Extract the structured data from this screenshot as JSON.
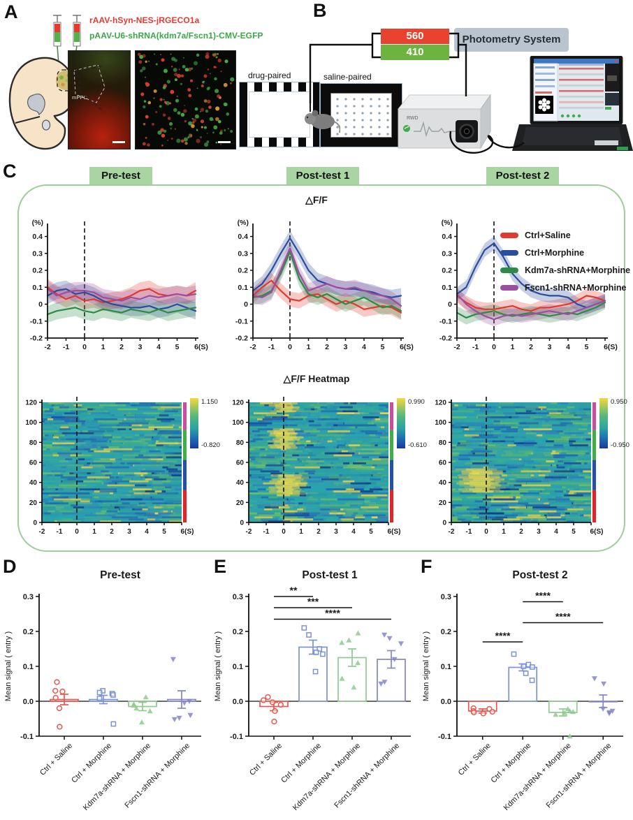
{
  "figure": {
    "panels": {
      "a": "A",
      "b": "B",
      "c": "C",
      "d": "D",
      "e": "E",
      "f": "F"
    },
    "panel_a": {
      "construct_red": "rAAV-hSyn-NES-jRGECO1a",
      "construct_green": "pAAV-U6-shRNA(kdm7a/Fscn1)-CMV-EGFP",
      "construct_red_color": "#e8392f",
      "construct_green_color": "#3aa648",
      "region_label": "mPFC",
      "micrograph_dot_colors": [
        "#e0402e",
        "#46b14a",
        "#e0962e"
      ]
    },
    "panel_b": {
      "chamber_left_label": "drug-paired",
      "chamber_right_label": "saline-paired",
      "wavelength_top": "560",
      "wavelength_bottom": "410",
      "wavelength_top_color": "#e8432e",
      "wavelength_bottom_color": "#6cb33f",
      "system_label": "Photometry System",
      "device_brand": "RWD"
    },
    "panel_c": {
      "headers": [
        "Pre-test",
        "Post-test 1",
        "Post-test 2"
      ],
      "trace_title": "△F/F",
      "heatmap_title": "△F/F Heatmap",
      "accent_green": "#a8d5a2",
      "legend": [
        {
          "label": "Ctrl+Saline",
          "color": "#e03a30"
        },
        {
          "label": "Ctrl+Morphine",
          "color": "#2b4d9b"
        },
        {
          "label": "Kdm7a-shRNA+Morphine",
          "color": "#2e8b47"
        },
        {
          "label": "Fscn1-shRNA+Morphine",
          "color": "#9c4f9e"
        }
      ]
    }
  },
  "chart_data": [
    {
      "id": "trace-pretest",
      "type": "line",
      "title": "Pre-test",
      "ylabel": "(%)",
      "x_range": [
        -2,
        6
      ],
      "y_range": [
        -0.2,
        0.46
      ],
      "x_ticks": [
        -2,
        -1,
        0,
        1,
        2,
        3,
        4,
        5,
        6
      ],
      "y_ticks": [
        0.4,
        0.3,
        0.2,
        0.1,
        0,
        -0.1,
        -0.2
      ],
      "event_line_x": 0,
      "x_step": 0.5,
      "band": 0.05,
      "series": [
        {
          "name": "Ctrl+Saline",
          "color": "#e03a30",
          "values": [
            0.1,
            0.06,
            0.03,
            0.05,
            0.02,
            0.03,
            0.01,
            0.02,
            0.03,
            0.05,
            0.08,
            0.09,
            0.06,
            0.05,
            0.06,
            0.05,
            0.08
          ]
        },
        {
          "name": "Ctrl+Morphine",
          "color": "#2b4d9b",
          "values": [
            0.05,
            0.08,
            0.09,
            0.06,
            0.07,
            0.05,
            0.02,
            0.0,
            -0.01,
            -0.02,
            -0.02,
            -0.01,
            -0.03,
            -0.02,
            0.0,
            -0.02,
            -0.04
          ]
        },
        {
          "name": "Kdm7a-shRNA+Morphine",
          "color": "#2e8b47",
          "values": [
            -0.06,
            -0.04,
            -0.03,
            -0.02,
            -0.04,
            -0.05,
            -0.03,
            -0.04,
            -0.05,
            -0.03,
            -0.04,
            -0.05,
            -0.03,
            -0.05,
            -0.04,
            -0.03,
            -0.02
          ]
        },
        {
          "name": "Fscn1-shRNA+Morphine",
          "color": "#9c4f9e",
          "values": [
            0.09,
            0.05,
            0.07,
            0.08,
            0.08,
            0.07,
            0.04,
            0.03,
            0.02,
            0.04,
            0.03,
            0.05,
            0.04,
            0.05,
            0.06,
            0.05,
            0.06
          ]
        }
      ]
    },
    {
      "id": "trace-posttest1",
      "type": "line",
      "title": "Post-test 1",
      "ylabel": "(%)",
      "x_range": [
        -2,
        6
      ],
      "y_range": [
        -0.2,
        0.46
      ],
      "x_ticks": [
        -2,
        -1,
        0,
        1,
        2,
        3,
        4,
        5,
        6
      ],
      "y_ticks": [
        0.4,
        0.3,
        0.2,
        0.1,
        0,
        -0.1,
        -0.2
      ],
      "event_line_x": 0,
      "x_step": 0.5,
      "band": 0.045,
      "series": [
        {
          "name": "Ctrl+Saline",
          "color": "#e03a30",
          "values": [
            0.05,
            0.1,
            0.14,
            0.08,
            0.03,
            0.02,
            0.05,
            0.06,
            0.03,
            0.0,
            0.02,
            0.0,
            -0.03,
            -0.02,
            -0.01,
            -0.02,
            -0.05
          ]
        },
        {
          "name": "Ctrl+Morphine",
          "color": "#2b4d9b",
          "values": [
            0.08,
            0.12,
            0.2,
            0.3,
            0.39,
            0.3,
            0.2,
            0.14,
            0.12,
            0.1,
            0.09,
            0.09,
            0.08,
            0.07,
            0.05,
            0.04,
            0.05
          ]
        },
        {
          "name": "Kdm7a-shRNA+Morphine",
          "color": "#2e8b47",
          "values": [
            0.04,
            0.05,
            0.08,
            0.18,
            0.31,
            0.15,
            0.06,
            0.04,
            0.06,
            0.03,
            0.0,
            0.02,
            0.04,
            0.01,
            -0.02,
            -0.01,
            -0.04
          ]
        },
        {
          "name": "Fscn1-shRNA+Morphine",
          "color": "#9c4f9e",
          "values": [
            0.05,
            0.04,
            0.07,
            0.2,
            0.33,
            0.18,
            0.08,
            0.1,
            0.12,
            0.1,
            0.09,
            0.1,
            0.08,
            0.06,
            0.05,
            0.03,
            -0.01
          ]
        }
      ]
    },
    {
      "id": "trace-posttest2",
      "type": "line",
      "title": "Post-test 2",
      "ylabel": "(%)",
      "x_range": [
        -2,
        6
      ],
      "y_range": [
        -0.2,
        0.46
      ],
      "x_ticks": [
        -2,
        -1,
        0,
        1,
        2,
        3,
        4,
        5,
        6
      ],
      "y_ticks": [
        0.4,
        0.3,
        0.2,
        0.1,
        0,
        -0.1,
        -0.2
      ],
      "event_line_x": 0,
      "x_step": 0.5,
      "band": 0.04,
      "series": [
        {
          "name": "Ctrl+Saline",
          "color": "#e03a30",
          "values": [
            0.05,
            0.01,
            -0.02,
            -0.03,
            -0.03,
            -0.02,
            -0.01,
            -0.03,
            -0.04,
            -0.02,
            -0.02,
            -0.01,
            0.0,
            0.02,
            0.05,
            0.04,
            0.02
          ]
        },
        {
          "name": "Ctrl+Morphine",
          "color": "#2b4d9b",
          "values": [
            0.06,
            0.1,
            0.22,
            0.32,
            0.36,
            0.28,
            0.18,
            0.12,
            0.08,
            0.06,
            0.05,
            0.05,
            0.04,
            0.0,
            -0.02,
            0.0,
            0.02
          ]
        },
        {
          "name": "Kdm7a-shRNA+Morphine",
          "color": "#2e8b47",
          "values": [
            -0.05,
            -0.08,
            -0.06,
            -0.05,
            -0.04,
            -0.06,
            -0.07,
            -0.06,
            -0.05,
            -0.06,
            -0.07,
            -0.06,
            -0.05,
            -0.06,
            -0.04,
            -0.02,
            0.01
          ]
        },
        {
          "name": "Fscn1-shRNA+Morphine",
          "color": "#9c4f9e",
          "values": [
            0.06,
            0.0,
            -0.04,
            -0.07,
            -0.09,
            -0.07,
            -0.06,
            -0.07,
            -0.06,
            -0.05,
            -0.04,
            -0.05,
            -0.06,
            -0.04,
            -0.02,
            0.0,
            0.02
          ]
        }
      ]
    },
    {
      "id": "heatmap-pretest",
      "type": "heatmap",
      "seed": 11,
      "x_range": [
        -2,
        6
      ],
      "y_range": [
        0,
        120
      ],
      "x_ticks": [
        -2,
        -1,
        0,
        1,
        2,
        3,
        4,
        5,
        6
      ],
      "y_ticks": [
        0,
        20,
        40,
        60,
        80,
        100,
        120
      ],
      "colorbar_max": "1.150",
      "colorbar_min": "-0.820",
      "event_line_x": 0,
      "hotspots": [],
      "group_strip": [
        {
          "color": "#e02428",
          "frac": 0.27
        },
        {
          "color": "#2350a8",
          "frac": 0.25
        },
        {
          "color": "#3fae49",
          "frac": 0.25
        },
        {
          "color": "#c94f9e",
          "frac": 0.23
        }
      ]
    },
    {
      "id": "heatmap-posttest1",
      "type": "heatmap",
      "seed": 23,
      "x_range": [
        -2,
        6
      ],
      "y_range": [
        0,
        120
      ],
      "x_ticks": [
        -2,
        -1,
        0,
        1,
        2,
        3,
        4,
        5,
        6
      ],
      "y_ticks": [
        0,
        20,
        40,
        60,
        80,
        100,
        120
      ],
      "colorbar_max": "0.990",
      "colorbar_min": "-0.610",
      "event_line_x": 0,
      "hotspots": [
        {
          "x": 0.1,
          "rows": [
            76,
            94
          ],
          "w": 1.6
        },
        {
          "x": 0.3,
          "rows": [
            30,
            48
          ],
          "w": 1.8
        },
        {
          "x": 0.0,
          "rows": [
            112,
            120
          ],
          "w": 1.4
        }
      ],
      "group_strip": [
        {
          "color": "#e02428",
          "frac": 0.27
        },
        {
          "color": "#2350a8",
          "frac": 0.25
        },
        {
          "color": "#3fae49",
          "frac": 0.25
        },
        {
          "color": "#c94f9e",
          "frac": 0.23
        }
      ]
    },
    {
      "id": "heatmap-posttest2",
      "type": "heatmap",
      "seed": 37,
      "x_range": [
        -2,
        6
      ],
      "y_range": [
        0,
        120
      ],
      "x_ticks": [
        -2,
        -1,
        0,
        1,
        2,
        3,
        4,
        5,
        6
      ],
      "y_ticks": [
        0,
        20,
        40,
        60,
        80,
        100,
        120
      ],
      "colorbar_max": "0.950",
      "colorbar_min": "-0.950",
      "event_line_x": 0,
      "hotspots": [
        {
          "x": -0.3,
          "rows": [
            32,
            54
          ],
          "w": 2.4
        }
      ],
      "group_strip": [
        {
          "color": "#e02428",
          "frac": 0.27
        },
        {
          "color": "#2350a8",
          "frac": 0.25
        },
        {
          "color": "#3fae49",
          "frac": 0.25
        },
        {
          "color": "#c94f9e",
          "frac": 0.23
        }
      ]
    },
    {
      "id": "bar-pretest",
      "type": "bar_scatter",
      "title": "Pre-test",
      "seed": 51,
      "ylabel": "Mean signal ( entry )",
      "y_range": [
        -0.1,
        0.3
      ],
      "y_ticks": [
        0.3,
        0.2,
        0.1,
        0.0,
        -0.1
      ],
      "categories": [
        "Ctrl + Saline",
        "Ctrl + Morphine",
        "Kdm7a-shRNA + Morphine",
        "Fscn1-shRNA + Morphine"
      ],
      "groups": [
        {
          "color": "#e8574f",
          "marker": "circle",
          "mean": 0.005,
          "sem": 0.015,
          "points": [
            0.055,
            0.03,
            0.028,
            0.01,
            -0.02,
            -0.073
          ]
        },
        {
          "color": "#7b93d6",
          "marker": "square",
          "mean": 0.005,
          "sem": 0.012,
          "points": [
            0.03,
            0.025,
            0.022,
            0.018,
            0.008,
            -0.065
          ]
        },
        {
          "color": "#8fca8f",
          "marker": "triangle-up",
          "mean": -0.015,
          "sem": 0.012,
          "points": [
            0.012,
            -0.008,
            -0.012,
            -0.02,
            -0.028,
            -0.06
          ]
        },
        {
          "color": "#8585c8",
          "marker": "triangle-down",
          "mean": 0.005,
          "sem": 0.025,
          "points": [
            0.12,
            0.0,
            -0.005,
            -0.04,
            -0.048,
            -0.052
          ]
        }
      ],
      "significance": []
    },
    {
      "id": "bar-posttest1",
      "type": "bar_scatter",
      "title": "Post-test 1",
      "seed": 52,
      "ylabel": "Mean signal ( entry )",
      "y_range": [
        -0.1,
        0.3
      ],
      "y_ticks": [
        0.3,
        0.2,
        0.1,
        0.0,
        -0.1
      ],
      "categories": [
        "Ctrl + Saline",
        "Ctrl + Morphine",
        "Kdm7a-shRNA + Morphine",
        "Fscn1-shRNA + Morphine"
      ],
      "groups": [
        {
          "color": "#e8574f",
          "marker": "circle",
          "mean": -0.015,
          "sem": 0.012,
          "points": [
            0.012,
            0.003,
            -0.003,
            -0.01,
            -0.028,
            -0.058
          ]
        },
        {
          "color": "#7b93d6",
          "marker": "square",
          "mean": 0.155,
          "sem": 0.02,
          "points": [
            0.21,
            0.19,
            0.15,
            0.14,
            0.135,
            0.085
          ]
        },
        {
          "color": "#8fca8f",
          "marker": "triangle-up",
          "mean": 0.125,
          "sem": 0.025,
          "points": [
            0.195,
            0.175,
            0.168,
            0.11,
            0.065,
            0.04
          ]
        },
        {
          "color": "#8585c8",
          "marker": "triangle-down",
          "mean": 0.12,
          "sem": 0.025,
          "points": [
            0.19,
            0.18,
            0.165,
            0.12,
            0.055,
            0.05
          ]
        }
      ],
      "significance": [
        {
          "a": 0,
          "b": 1,
          "label": "**",
          "y": 0.3
        },
        {
          "a": 0,
          "b": 2,
          "label": "***",
          "y": 0.268
        },
        {
          "a": 0,
          "b": 3,
          "label": "****",
          "y": 0.235
        }
      ]
    },
    {
      "id": "bar-posttest2",
      "type": "bar_scatter",
      "title": "Post-test 2",
      "seed": 53,
      "ylabel": "Mean signal ( entry )",
      "y_range": [
        -0.1,
        0.3
      ],
      "y_ticks": [
        0.3,
        0.2,
        0.1,
        0.0,
        -0.1
      ],
      "categories": [
        "Ctrl + Saline",
        "Ctrl + Morphine",
        "Kdm7a-shRNA + Morphine",
        "Fscn1-shRNA + Morphine"
      ],
      "groups": [
        {
          "color": "#e8574f",
          "marker": "circle",
          "mean": -0.028,
          "sem": 0.006,
          "points": [
            -0.02,
            -0.022,
            -0.028,
            -0.03,
            -0.032,
            -0.035
          ]
        },
        {
          "color": "#7b93d6",
          "marker": "square",
          "mean": 0.097,
          "sem": 0.01,
          "points": [
            0.135,
            0.105,
            0.1,
            0.098,
            0.08,
            0.06
          ]
        },
        {
          "color": "#8fca8f",
          "marker": "triangle-up",
          "mean": -0.032,
          "sem": 0.01,
          "points": [
            -0.022,
            -0.028,
            -0.03,
            -0.033,
            -0.038,
            -0.1
          ]
        },
        {
          "color": "#8585c8",
          "marker": "triangle-down",
          "mean": 0.0,
          "sem": 0.018,
          "points": [
            0.065,
            0.05,
            -0.022,
            -0.028,
            -0.032,
            -0.035
          ]
        }
      ],
      "significance": [
        {
          "a": 1,
          "b": 2,
          "label": "****",
          "y": 0.285
        },
        {
          "a": 1,
          "b": 3,
          "label": "****",
          "y": 0.225
        },
        {
          "a": 0,
          "b": 1,
          "label": "****",
          "y": 0.17
        }
      ]
    }
  ]
}
